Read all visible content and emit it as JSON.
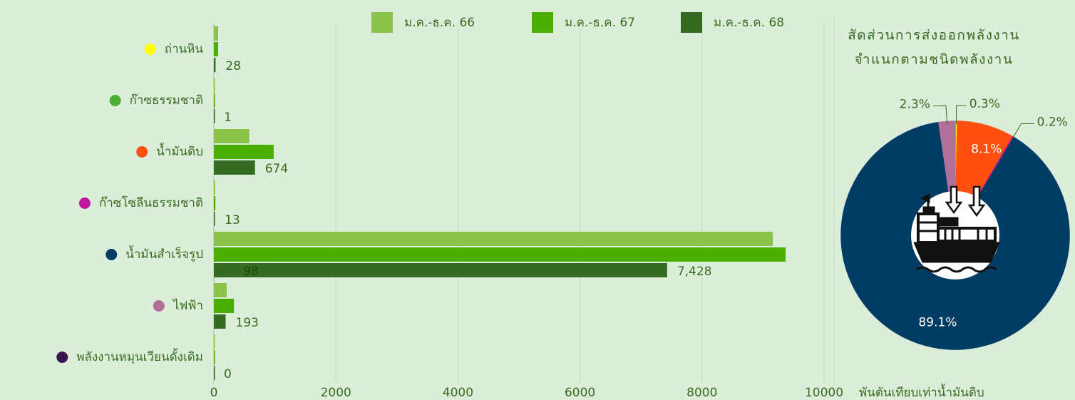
{
  "chart_data": [
    {
      "type": "bar",
      "orientation": "horizontal",
      "categories": [
        "ถ่านหิน",
        "ก๊าซธรรมชาติ",
        "น้ำมันดิบ",
        "ก๊าซโซลีนธรรมชาติ",
        "น้ำมันสำเร็จรูป",
        "ไฟฟ้า",
        "พลังงานหมุนเวียนดั้งเดิม"
      ],
      "category_colors": [
        "#ffff00",
        "#4caf32",
        "#ff5010",
        "#c0189c",
        "#003c64",
        "#b07098",
        "#3c1450"
      ],
      "series": [
        {
          "name": "ม.ค.-ธ.ค. 66",
          "color": "#8bc34a",
          "values": [
            70,
            1,
            580,
            20,
            9160,
            210,
            0
          ]
        },
        {
          "name": "ม.ค.-ธ.ค. 67",
          "color": "#4caf00",
          "values": [
            70,
            1,
            980,
            25,
            9370,
            330,
            0
          ]
        },
        {
          "name": "ม.ค.-ธ.ค. 68",
          "color": "#336b22",
          "values": [
            28,
            1,
            674,
            13,
            7428,
            193,
            0
          ],
          "value_labels": [
            "28",
            "1",
            "674",
            "13",
            "7,428",
            "193",
            "0"
          ]
        }
      ],
      "annotations": [
        "98"
      ],
      "xlabel": "พันตันเทียบเท่าน้ำมันดิบ",
      "xlim": [
        0,
        10000
      ],
      "xticks": [
        0,
        2000,
        4000,
        6000,
        8000,
        10000
      ],
      "grid": true
    },
    {
      "type": "pie",
      "donut": true,
      "title": [
        "สัดส่วนการส่งออกพลังงาน",
        "จำแนกตามชนิดพลังงาน"
      ],
      "values": [
        0.3,
        8.1,
        0.2,
        89.1,
        2.3
      ],
      "value_labels": [
        "0.3%",
        "8.1%",
        "0.2%",
        "89.1%",
        "2.3%"
      ],
      "colors": [
        "#ffff00",
        "#ff5010",
        "#c0189c",
        "#003c64",
        "#b07098"
      ]
    }
  ]
}
